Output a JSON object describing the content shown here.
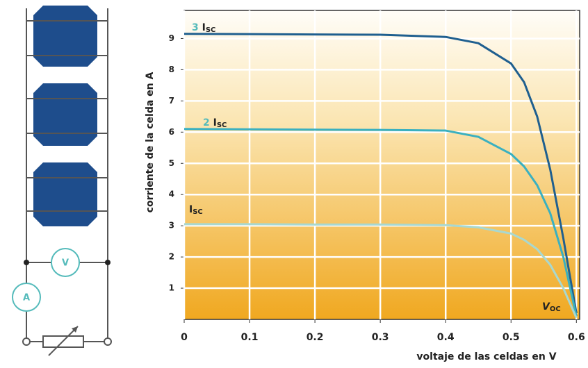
{
  "diagram": {
    "voltmeter": "V",
    "ammeter": "A"
  },
  "chart_data": {
    "type": "line",
    "y_label": "corriente de la celda en A",
    "x_label": "voltaje de las celdas en V",
    "x": [
      0,
      0.1,
      0.2,
      0.3,
      0.4,
      0.45,
      0.5,
      0.52,
      0.54,
      0.56,
      0.58,
      0.6
    ],
    "series": [
      {
        "color": "#1f5f8f",
        "values": [
          9.15,
          9.14,
          9.13,
          9.12,
          9.05,
          8.85,
          8.2,
          7.6,
          6.5,
          4.8,
          2.6,
          0.2
        ]
      },
      {
        "color": "#3ab0c0",
        "values": [
          6.1,
          6.09,
          6.08,
          6.07,
          6.05,
          5.85,
          5.3,
          4.9,
          4.3,
          3.4,
          2.0,
          0.1
        ]
      },
      {
        "color": "#a8d8d0",
        "values": [
          3.05,
          3.05,
          3.04,
          3.04,
          3.02,
          2.95,
          2.75,
          2.55,
          2.25,
          1.75,
          1.0,
          0.05
        ]
      }
    ],
    "annotations": [
      {
        "prefix": "3",
        "text": "I",
        "sub": "SC"
      },
      {
        "prefix": "2",
        "text": "I",
        "sub": "SC"
      },
      {
        "text": "I",
        "sub": "SC"
      },
      {
        "text": "V",
        "sub": "OC"
      }
    ],
    "xlim": [
      0,
      0.605
    ],
    "ylim": [
      0,
      9.9
    ],
    "xticks": [
      0,
      0.1,
      0.2,
      0.3,
      0.4,
      0.5,
      0.6
    ],
    "yticks": [
      1,
      2,
      3,
      4,
      5,
      6,
      7,
      8,
      9
    ],
    "grid": true
  }
}
